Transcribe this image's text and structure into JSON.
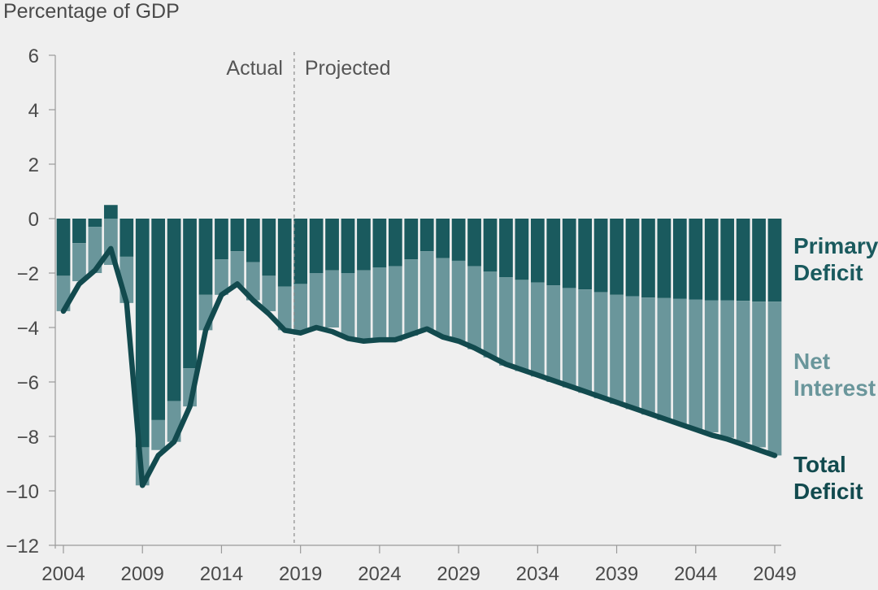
{
  "chart_data": {
    "type": "bar",
    "title": "",
    "ylabel": "Percentage of GDP",
    "xlabel": "",
    "ylim": [
      -12,
      6
    ],
    "yticks": [
      6,
      4,
      2,
      0,
      -2,
      -4,
      -6,
      -8,
      -10,
      -12
    ],
    "ytick_labels": [
      "6",
      "4",
      "2",
      "0",
      "−2",
      "−4",
      "−6",
      "−8",
      "−10",
      "−12"
    ],
    "xlim": [
      2004,
      2049
    ],
    "xticks": [
      2004,
      2009,
      2014,
      2019,
      2024,
      2029,
      2034,
      2039,
      2044,
      2049
    ],
    "xtick_labels": [
      "2004",
      "2009",
      "2014",
      "2019",
      "2024",
      "2029",
      "2034",
      "2039",
      "2044",
      "2049"
    ],
    "annotations": {
      "actual": "Actual",
      "projected": "Projected",
      "divider_year": 2018.6
    },
    "years": [
      2004,
      2005,
      2006,
      2007,
      2008,
      2009,
      2010,
      2011,
      2012,
      2013,
      2014,
      2015,
      2016,
      2017,
      2018,
      2019,
      2020,
      2021,
      2022,
      2023,
      2024,
      2025,
      2026,
      2027,
      2028,
      2029,
      2030,
      2031,
      2032,
      2033,
      2034,
      2035,
      2036,
      2037,
      2038,
      2039,
      2040,
      2041,
      2042,
      2043,
      2044,
      2045,
      2046,
      2047,
      2048,
      2049
    ],
    "series": [
      {
        "name": "Primary Deficit",
        "color": "#1a5a5e",
        "values": [
          -2.1,
          -0.9,
          -0.3,
          0.5,
          -1.4,
          -8.4,
          -7.4,
          -6.7,
          -5.5,
          -2.8,
          -1.5,
          -1.2,
          -1.6,
          -2.1,
          -2.5,
          -2.4,
          -2.0,
          -1.9,
          -2.0,
          -1.9,
          -1.8,
          -1.75,
          -1.5,
          -1.2,
          -1.45,
          -1.55,
          -1.75,
          -1.95,
          -2.15,
          -2.25,
          -2.35,
          -2.45,
          -2.55,
          -2.6,
          -2.7,
          -2.8,
          -2.85,
          -2.9,
          -2.92,
          -2.95,
          -2.97,
          -3.0,
          -3.0,
          -3.02,
          -3.05,
          -3.05
        ]
      },
      {
        "name": "Net Interest",
        "color": "#6a969b",
        "values": [
          -1.3,
          -1.4,
          -1.7,
          -1.7,
          -1.7,
          -1.4,
          -1.1,
          -1.5,
          -1.4,
          -1.3,
          -1.3,
          -1.3,
          -1.4,
          -1.3,
          -1.6,
          -1.8,
          -2.0,
          -2.1,
          -2.4,
          -2.6,
          -2.7,
          -2.75,
          -2.8,
          -2.9,
          -2.85,
          -2.95,
          -3.05,
          -3.15,
          -3.25,
          -3.35,
          -3.45,
          -3.55,
          -3.65,
          -3.8,
          -3.9,
          -4.0,
          -4.15,
          -4.3,
          -4.48,
          -4.6,
          -4.78,
          -4.85,
          -5.05,
          -5.2,
          -5.35,
          -5.65
        ]
      },
      {
        "name": "Total Deficit",
        "color": "#124a4e",
        "values": [
          -3.4,
          -2.4,
          -1.9,
          -1.1,
          -3.1,
          -9.8,
          -8.7,
          -8.2,
          -6.9,
          -4.1,
          -2.8,
          -2.4,
          -3.0,
          -3.5,
          -4.1,
          -4.2,
          -4.0,
          -4.15,
          -4.4,
          -4.5,
          -4.45,
          -4.45,
          -4.25,
          -4.05,
          -4.35,
          -4.5,
          -4.75,
          -5.05,
          -5.35,
          -5.55,
          -5.75,
          -5.95,
          -6.15,
          -6.35,
          -6.55,
          -6.75,
          -6.95,
          -7.15,
          -7.35,
          -7.55,
          -7.75,
          -7.95,
          -8.1,
          -8.3,
          -8.5,
          -8.7
        ]
      }
    ],
    "legend": {
      "placement": "right",
      "primary": [
        "Primary",
        "Deficit"
      ],
      "interest": [
        "Net",
        "Interest"
      ],
      "total": [
        "Total",
        "Deficit"
      ]
    },
    "grid": false
  }
}
